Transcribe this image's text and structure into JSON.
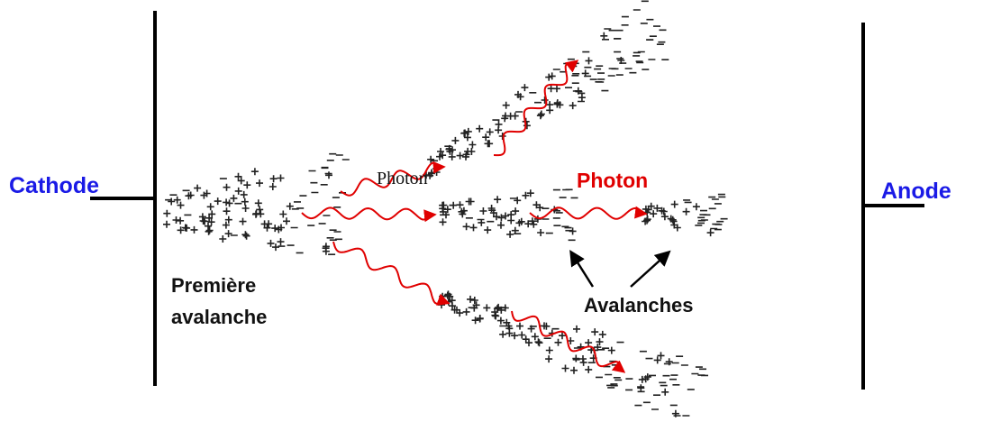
{
  "cathode": {
    "label": "Cathode"
  },
  "anode": {
    "label": "Anode"
  },
  "labels": {
    "photon_black": "Photon",
    "photon_red": "Photon",
    "first_avalanche": [
      "Première",
      "avalanche"
    ],
    "avalanches": "Avalanches"
  }
}
